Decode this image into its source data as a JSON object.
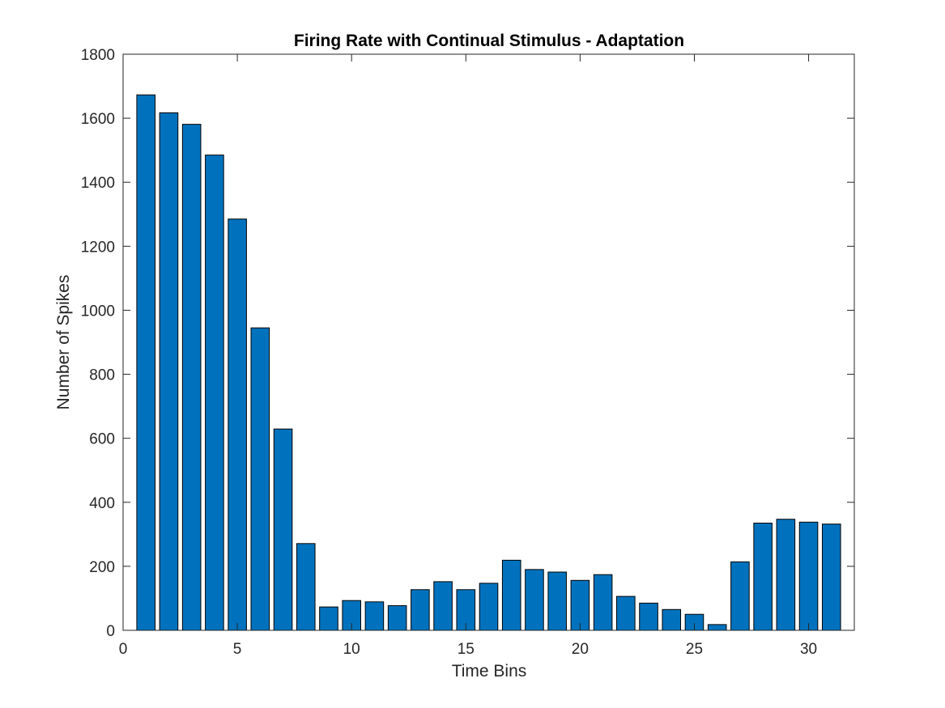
{
  "chart_data": {
    "type": "bar",
    "title": "Firing Rate with Continual Stimulus - Adaptation",
    "xlabel": "Time Bins",
    "ylabel": "Number of Spikes",
    "xlim": [
      0,
      32
    ],
    "ylim": [
      0,
      1800
    ],
    "xticks": [
      0,
      5,
      10,
      15,
      20,
      25,
      30
    ],
    "yticks": [
      0,
      200,
      400,
      600,
      800,
      1000,
      1200,
      1400,
      1600,
      1800
    ],
    "x": [
      1,
      2,
      3,
      4,
      5,
      6,
      7,
      8,
      9,
      10,
      11,
      12,
      13,
      14,
      15,
      16,
      17,
      18,
      19,
      20,
      21,
      22,
      23,
      24,
      25,
      26,
      27,
      28,
      29,
      30,
      31
    ],
    "values": [
      1673,
      1617,
      1581,
      1485,
      1285,
      945,
      629,
      271,
      73,
      93,
      89,
      77,
      127,
      152,
      127,
      147,
      219,
      190,
      182,
      156,
      174,
      106,
      85,
      65,
      50,
      18,
      214,
      335,
      347,
      338,
      332
    ],
    "bar_color": "#0072BD",
    "bar_edge_color": "#000000",
    "grid": false
  }
}
